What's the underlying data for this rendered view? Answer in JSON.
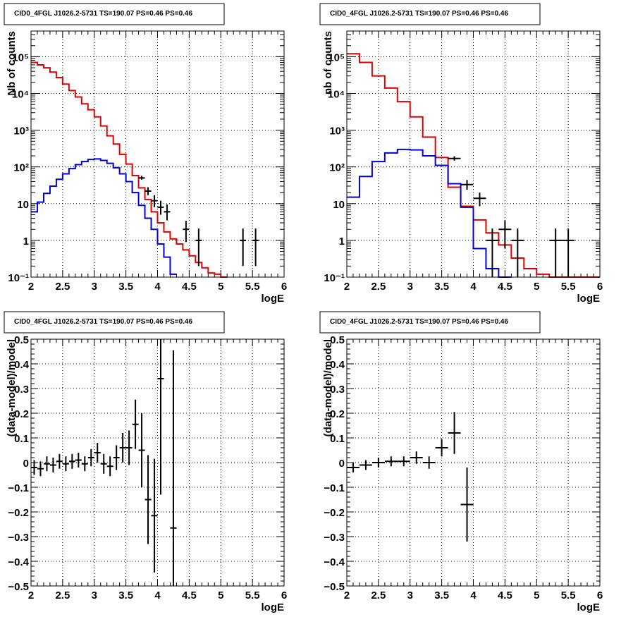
{
  "chart_data": [
    {
      "type": "line",
      "panel": "top-left",
      "title": "CID0_4FGL J1026.2-5731 TS=190.07 PS=0.46 PS=0.46",
      "xlabel": "logE",
      "ylabel": "Nb of counts",
      "xlim": [
        2,
        6
      ],
      "ylim": [
        0.1,
        500000
      ],
      "yscale": "log",
      "grid": true,
      "x_ticks": [
        "2",
        "2.5",
        "3",
        "3.5",
        "4",
        "4.5",
        "5",
        "5.5",
        "6"
      ],
      "y_ticks": [
        {
          "value": 0.1,
          "label": "10⁻¹"
        },
        {
          "value": 1,
          "label": "1"
        },
        {
          "value": 10,
          "label": "10"
        },
        {
          "value": 100,
          "label": "10²"
        },
        {
          "value": 1000,
          "label": "10³"
        },
        {
          "value": 10000,
          "label": "10⁴"
        },
        {
          "value": 100000,
          "label": "10⁵"
        }
      ],
      "series": [
        {
          "kind": "step",
          "color": "#e00000",
          "edges": [
            2.0,
            2.1,
            2.2,
            2.3,
            2.4,
            2.5,
            2.6,
            2.7,
            2.8,
            2.9,
            3.0,
            3.1,
            3.2,
            3.3,
            3.4,
            3.5,
            3.6,
            3.7,
            3.8,
            3.9,
            4.0,
            4.1,
            4.2,
            4.3,
            4.4,
            4.5,
            4.6,
            4.7,
            4.8,
            4.9,
            5.0,
            5.1
          ],
          "values": [
            70000,
            60000,
            50000,
            38000,
            27000,
            18000,
            12000,
            8000,
            5200,
            3600,
            2300,
            1300,
            700,
            420,
            220,
            120,
            58,
            27,
            13,
            6,
            3,
            1.7,
            1.1,
            0.8,
            0.55,
            0.38,
            0.25,
            0.18,
            0.13,
            0.12,
            0.1
          ]
        },
        {
          "kind": "step",
          "color": "#0000dd",
          "edges": [
            2.0,
            2.1,
            2.2,
            2.3,
            2.4,
            2.5,
            2.6,
            2.7,
            2.8,
            2.9,
            3.0,
            3.1,
            3.2,
            3.3,
            3.4,
            3.5,
            3.6,
            3.7,
            3.8,
            3.9,
            4.0,
            4.1,
            4.2,
            4.3
          ],
          "values": [
            6,
            11,
            19,
            30,
            46,
            65,
            90,
            115,
            140,
            160,
            165,
            150,
            125,
            95,
            65,
            40,
            20,
            9,
            4,
            2,
            0.8,
            0.35,
            0.12
          ]
        },
        {
          "kind": "points",
          "color": "#000000",
          "x": [
            3.75,
            3.85,
            3.95,
            4.05,
            4.15,
            4.45,
            4.65,
            5.35,
            5.55
          ],
          "y": [
            50,
            22,
            12,
            8,
            6,
            2,
            1,
            1,
            1
          ],
          "xerr": 0.05,
          "ylo": [
            45,
            17,
            8,
            5,
            3.5,
            0.9,
            0.2,
            0.2,
            0.2
          ],
          "yhi": [
            57,
            28,
            17,
            12,
            9.5,
            3.4,
            2.1,
            2.1,
            2.1
          ]
        }
      ]
    },
    {
      "type": "line",
      "panel": "top-right",
      "title": "CID0_4FGL J1026.2-5731 TS=190.07 PS=0.46 PS=0.46",
      "xlabel": "logE",
      "ylabel": "nb of counts",
      "xlim": [
        2,
        6
      ],
      "ylim": [
        0.1,
        500000
      ],
      "yscale": "log",
      "grid": true,
      "x_ticks": [
        "2",
        "2.5",
        "3",
        "3.5",
        "4",
        "4.5",
        "5",
        "5.5",
        "6"
      ],
      "y_ticks": [
        {
          "value": 0.1,
          "label": "10⁻¹"
        },
        {
          "value": 1,
          "label": "1"
        },
        {
          "value": 10,
          "label": "10"
        },
        {
          "value": 100,
          "label": "10²"
        },
        {
          "value": 1000,
          "label": "10³"
        },
        {
          "value": 10000,
          "label": "10⁴"
        },
        {
          "value": 100000,
          "label": "10⁵"
        }
      ],
      "series": [
        {
          "kind": "step",
          "color": "#e00000",
          "edges": [
            2.0,
            2.2,
            2.4,
            2.6,
            2.8,
            3.0,
            3.2,
            3.4,
            3.6,
            3.8,
            4.0,
            4.2,
            4.4,
            4.6,
            4.8,
            5.0,
            5.2,
            5.4,
            5.6,
            5.8,
            6.0
          ],
          "values": [
            120000,
            70000,
            30000,
            14000,
            6000,
            2300,
            650,
            180,
            28,
            8.5,
            3.6,
            1.6,
            0.75,
            0.33,
            0.17,
            0.12,
            0.1,
            0.1,
            0.1,
            0.1
          ]
        },
        {
          "kind": "step",
          "color": "#0000dd",
          "edges": [
            2.0,
            2.2,
            2.4,
            2.6,
            2.8,
            3.0,
            3.2,
            3.4,
            3.6,
            3.8,
            4.0,
            4.2,
            4.4,
            4.6
          ],
          "values": [
            15,
            55,
            140,
            240,
            300,
            290,
            200,
            110,
            35,
            8,
            0.6,
            0.17,
            0.1
          ]
        },
        {
          "kind": "points",
          "color": "#000000",
          "x": [
            3.7,
            3.9,
            4.1,
            4.3,
            4.5,
            4.7,
            5.3,
            5.5
          ],
          "y": [
            170,
            33,
            14,
            1,
            2,
            1,
            1,
            1
          ],
          "xerr": 0.1,
          "ylo": [
            148,
            24,
            8.5,
            0.1,
            0.6,
            0.1,
            0.1,
            0.1
          ],
          "yhi": [
            195,
            44,
            20,
            2.1,
            3.5,
            2.1,
            2.1,
            2.1
          ]
        }
      ]
    },
    {
      "type": "scatter",
      "panel": "bottom-left",
      "title": "CID0_4FGL J1026.2-5731 TS=190.07 PS=0.46 PS=0.46",
      "xlabel": "logE",
      "ylabel": "(data-model)/model",
      "xlim": [
        2,
        6
      ],
      "ylim": [
        -0.5,
        0.5
      ],
      "grid": true,
      "x_ticks": [
        "2",
        "2.5",
        "3",
        "3.5",
        "4",
        "4.5",
        "5",
        "5.5",
        "6"
      ],
      "y_ticks": [
        {
          "value": -0.5,
          "label": "−0.5"
        },
        {
          "value": -0.4,
          "label": "−0.4"
        },
        {
          "value": -0.3,
          "label": "−0.3"
        },
        {
          "value": -0.2,
          "label": "−0.2"
        },
        {
          "value": -0.1,
          "label": "−0.1"
        },
        {
          "value": 0,
          "label": "0"
        },
        {
          "value": 0.1,
          "label": "0.1"
        },
        {
          "value": 0.2,
          "label": "0.2"
        },
        {
          "value": 0.3,
          "label": "0.3"
        },
        {
          "value": 0.4,
          "label": "0.4"
        },
        {
          "value": 0.5,
          "label": "0.5"
        }
      ],
      "series": [
        {
          "kind": "points",
          "color": "#000000",
          "x": [
            2.05,
            2.15,
            2.25,
            2.35,
            2.45,
            2.55,
            2.65,
            2.75,
            2.85,
            2.95,
            3.05,
            3.15,
            3.25,
            3.35,
            3.45,
            3.55,
            3.65,
            3.75,
            3.85,
            3.95,
            4.05,
            4.25
          ],
          "y": [
            -0.02,
            -0.025,
            -0.005,
            -0.01,
            0.005,
            -0.005,
            0.005,
            0.01,
            -0.005,
            0.02,
            0.04,
            -0.005,
            -0.015,
            0.02,
            0.06,
            0.06,
            0.155,
            0.05,
            -0.15,
            -0.215,
            0.34,
            -0.265
          ],
          "xerr": 0.05,
          "yerr": [
            0.03,
            0.03,
            0.03,
            0.03,
            0.03,
            0.03,
            0.03,
            0.03,
            0.03,
            0.035,
            0.04,
            0.04,
            0.04,
            0.05,
            0.06,
            0.07,
            0.1,
            0.15,
            0.18,
            0.23,
            0.47,
            0.72
          ]
        }
      ]
    },
    {
      "type": "scatter",
      "panel": "bottom-right",
      "title": "CID0_4FGL J1026.2-5731 TS=190.07 PS=0.46 PS=0.46",
      "xlabel": "logE",
      "ylabel": "(data-model)/model",
      "xlim": [
        2,
        6
      ],
      "ylim": [
        -0.5,
        0.5
      ],
      "grid": true,
      "x_ticks": [
        "2",
        "2.5",
        "3",
        "3.5",
        "4",
        "4.5",
        "5",
        "5.5",
        "6"
      ],
      "y_ticks": [
        {
          "value": -0.5,
          "label": "−0.5"
        },
        {
          "value": -0.4,
          "label": "−0.4"
        },
        {
          "value": -0.3,
          "label": "−0.3"
        },
        {
          "value": -0.2,
          "label": "−0.2"
        },
        {
          "value": -0.1,
          "label": "−0.1"
        },
        {
          "value": 0,
          "label": "0"
        },
        {
          "value": 0.1,
          "label": "0.1"
        },
        {
          "value": 0.2,
          "label": "0.2"
        },
        {
          "value": 0.3,
          "label": "0.3"
        },
        {
          "value": 0.4,
          "label": "0.4"
        },
        {
          "value": 0.5,
          "label": "0.5"
        }
      ],
      "series": [
        {
          "kind": "points",
          "color": "#000000",
          "x": [
            2.1,
            2.3,
            2.5,
            2.7,
            2.9,
            3.1,
            3.3,
            3.5,
            3.7,
            3.9
          ],
          "y": [
            -0.02,
            -0.01,
            0.0,
            0.005,
            0.005,
            0.02,
            0.0,
            0.06,
            0.12,
            -0.17
          ],
          "xerr": 0.1,
          "yerr": [
            0.02,
            0.02,
            0.02,
            0.02,
            0.02,
            0.025,
            0.025,
            0.035,
            0.085,
            0.15
          ]
        }
      ]
    }
  ]
}
